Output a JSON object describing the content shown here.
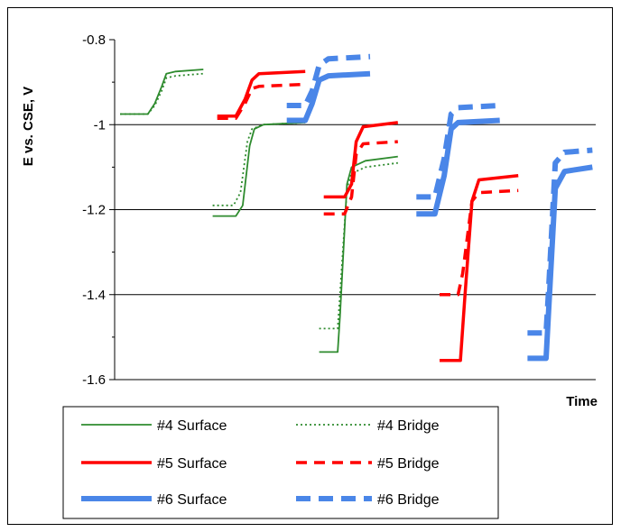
{
  "chart_data": {
    "type": "line",
    "title": "",
    "xlabel": "Time",
    "ylabel": "E vs. CSE, V",
    "ylim": [
      -1.6,
      -0.8
    ],
    "ytick_labels": [
      "-0.8",
      "-1",
      "-1.2",
      "-1.4",
      "-1.6"
    ],
    "yticks": [
      -0.8,
      -1.0,
      -1.2,
      -1.4,
      -1.6
    ],
    "xlim": [
      0,
      100
    ],
    "grid": "horizontal major lines",
    "legend_position": "bottom",
    "series": [
      {
        "name": "#4 Surface",
        "color": "#2e8b2e",
        "dash": "solid",
        "width": 1.8,
        "segments": [
          {
            "x": [
              0,
              6,
              7.5,
              9,
              10,
              12,
              18
            ],
            "y": [
              -0.975,
              -0.975,
              -0.95,
              -0.91,
              -0.88,
              -0.875,
              -0.87
            ]
          },
          {
            "x": [
              20,
              25,
              26.5,
              28,
              29,
              31,
              40
            ],
            "y": [
              -1.215,
              -1.215,
              -1.19,
              -1.05,
              -1.01,
              -1.0,
              -0.995
            ]
          },
          {
            "x": [
              43,
              47,
              47.5,
              49,
              50,
              53,
              60
            ],
            "y": [
              -1.535,
              -1.535,
              -1.45,
              -1.14,
              -1.1,
              -1.085,
              -1.075
            ]
          }
        ]
      },
      {
        "name": "#4 Bridge",
        "color": "#2e8b2e",
        "dash": "dotted",
        "width": 1.8,
        "segments": [
          {
            "x": [
              0,
              6,
              7.5,
              9,
              10,
              12,
              18
            ],
            "y": [
              -0.975,
              -0.975,
              -0.955,
              -0.92,
              -0.89,
              -0.885,
              -0.88
            ]
          },
          {
            "x": [
              20,
              24.5,
              26,
              27.5,
              28.5,
              31,
              40
            ],
            "y": [
              -1.19,
              -1.19,
              -1.16,
              -1.04,
              -1.01,
              -1.0,
              -0.995
            ]
          },
          {
            "x": [
              43,
              47,
              47.5,
              49,
              50,
              53,
              60
            ],
            "y": [
              -1.48,
              -1.48,
              -1.4,
              -1.15,
              -1.115,
              -1.1,
              -1.09
            ]
          }
        ]
      },
      {
        "name": "#5 Surface",
        "color": "#ff0000",
        "dash": "solid",
        "width": 3.5,
        "segments": [
          {
            "x": [
              21,
              25,
              27,
              28.5,
              30,
              40
            ],
            "y": [
              -0.98,
              -0.98,
              -0.94,
              -0.895,
              -0.88,
              -0.875
            ]
          },
          {
            "x": [
              44,
              48.5,
              50,
              51,
              52.5,
              60
            ],
            "y": [
              -1.17,
              -1.17,
              -1.14,
              -1.04,
              -1.005,
              -0.995
            ]
          },
          {
            "x": [
              69,
              73.5,
              74.5,
              76,
              77.5,
              86
            ],
            "y": [
              -1.555,
              -1.555,
              -1.4,
              -1.18,
              -1.13,
              -1.12
            ]
          }
        ]
      },
      {
        "name": "#5 Bridge",
        "color": "#ff0000",
        "dash": "dashed",
        "width": 3.5,
        "segments": [
          {
            "x": [
              21,
              25,
              27,
              28.5,
              30,
              40
            ],
            "y": [
              -0.985,
              -0.985,
              -0.95,
              -0.915,
              -0.91,
              -0.905
            ]
          },
          {
            "x": [
              44,
              48.5,
              50,
              51,
              52.5,
              60
            ],
            "y": [
              -1.21,
              -1.21,
              -1.17,
              -1.07,
              -1.045,
              -1.04
            ]
          },
          {
            "x": [
              69,
              73,
              74,
              76,
              77.5,
              86
            ],
            "y": [
              -1.4,
              -1.4,
              -1.35,
              -1.18,
              -1.16,
              -1.155
            ]
          }
        ]
      },
      {
        "name": "#6 Surface",
        "color": "#4a86e8",
        "dash": "solid",
        "width": 6,
        "segments": [
          {
            "x": [
              36,
              40,
              41.5,
              43,
              45,
              54
            ],
            "y": [
              -0.99,
              -0.99,
              -0.95,
              -0.895,
              -0.885,
              -0.88
            ]
          },
          {
            "x": [
              64,
              68,
              70,
              71.5,
              73,
              82
            ],
            "y": [
              -1.21,
              -1.21,
              -1.12,
              -1.01,
              -0.995,
              -0.99
            ]
          },
          {
            "x": [
              88,
              92,
              92.5,
              94,
              96,
              102
            ],
            "y": [
              -1.55,
              -1.55,
              -1.45,
              -1.15,
              -1.11,
              -1.1
            ]
          }
        ]
      },
      {
        "name": "#6 Bridge",
        "color": "#4a86e8",
        "dash": "dashed",
        "width": 6,
        "segments": [
          {
            "x": [
              36,
              40,
              41.5,
              43,
              45,
              54
            ],
            "y": [
              -0.955,
              -0.955,
              -0.92,
              -0.86,
              -0.845,
              -0.84
            ]
          },
          {
            "x": [
              64,
              68,
              70,
              71.5,
              73,
              82
            ],
            "y": [
              -1.17,
              -1.17,
              -1.08,
              -0.975,
              -0.96,
              -0.955
            ]
          },
          {
            "x": [
              88,
              92,
              92.5,
              94,
              96,
              102
            ],
            "y": [
              -1.49,
              -1.49,
              -1.4,
              -1.09,
              -1.065,
              -1.06
            ]
          }
        ]
      }
    ]
  }
}
